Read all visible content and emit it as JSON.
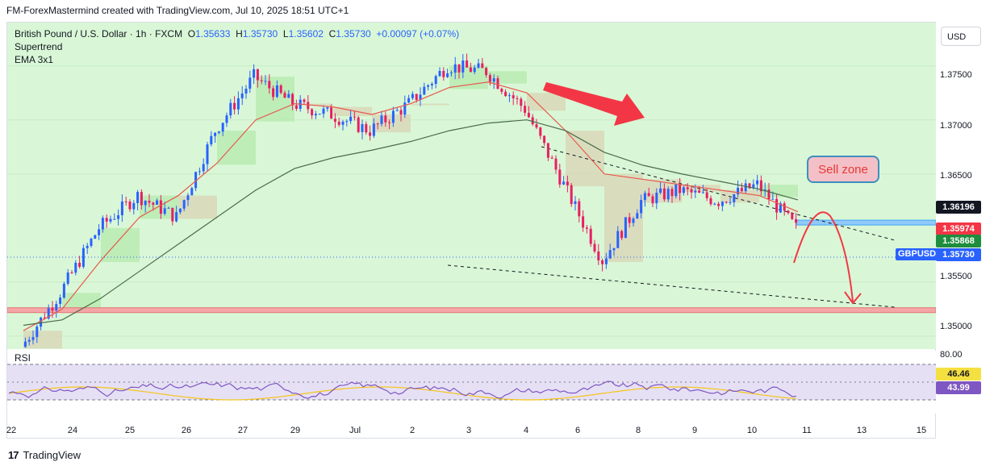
{
  "header": {
    "text": "FM-ForexMastermind created with TradingView.com, Jul 10, 2025 18:51 UTC+1"
  },
  "legend": {
    "symbol": "British Pound / U.S. Dollar · 1h · FXCM",
    "o_label": "O",
    "o": "1.35633",
    "h_label": "H",
    "h": "1.35730",
    "l_label": "L",
    "l": "1.35602",
    "c_label": "C",
    "c": "1.35730",
    "change": "+0.00097 (+0.07%)",
    "indicator1": "Supertrend",
    "indicator2": "EMA 3x1"
  },
  "currency_button": "USD",
  "price_axis_labels": [
    "1.37500",
    "1.37000",
    "1.36500",
    "1.35500",
    "1.35000"
  ],
  "price_tags": {
    "level_1": "1.36196",
    "level_2": "1.35974",
    "level_3": "1.35868",
    "current": "1.35730",
    "current_symbol": "GBPUSD"
  },
  "x_axis_labels": [
    "22",
    "24",
    "25",
    "26",
    "27",
    "29",
    "Jul",
    "2",
    "3",
    "4",
    "6",
    "8",
    "9",
    "10",
    "11",
    "13",
    "15"
  ],
  "annotation": {
    "sell_zone": "Sell zone"
  },
  "rsi": {
    "title": "RSI",
    "upper": "80.00",
    "value_ma": "46.46",
    "value_rsi": "43.99"
  },
  "footer": {
    "brand": "TradingView"
  },
  "colors": {
    "bg_green": "#d9f7d6",
    "bull": "#2962ff",
    "bear": "#e91e63",
    "ema_red": "#e8584f",
    "ema_green": "#4caf50",
    "ema_dark": "#4a6b4a",
    "support_band": "#f4a7a7",
    "resistance_band": "#90caf9",
    "arrow": "#f23645"
  },
  "chart_data": {
    "type": "line",
    "title": "British Pound / U.S. Dollar · 1h · FXCM",
    "ylim": [
      1.3488,
      1.379
    ],
    "yticks": [
      1.35,
      1.355,
      1.365,
      1.37,
      1.375
    ],
    "x": [
      0,
      1,
      2,
      3,
      4,
      5,
      6,
      7,
      8,
      9,
      10,
      11,
      12,
      13,
      14,
      15,
      16,
      17,
      18,
      19,
      20
    ],
    "series": [
      {
        "values": [
          1.349,
          1.354,
          1.36,
          1.363,
          1.361,
          1.369,
          1.374,
          1.3715,
          1.3705,
          1.369,
          1.3715,
          1.375,
          1.3745,
          1.371,
          1.364,
          1.357,
          1.3625,
          1.3635,
          1.3625,
          1.364,
          1.36
        ]
      },
      {
        "values": [
          1.3505,
          1.3525,
          1.357,
          1.361,
          1.363,
          1.366,
          1.37,
          1.3715,
          1.3712,
          1.3705,
          1.3715,
          1.373,
          1.3735,
          1.3725,
          1.369,
          1.365,
          1.3645,
          1.364,
          1.3635,
          1.363,
          1.3615
        ]
      },
      {
        "values": [
          1.351,
          1.3515,
          1.3535,
          1.356,
          1.3585,
          1.361,
          1.3635,
          1.3655,
          1.3665,
          1.3672,
          1.368,
          1.369,
          1.3697,
          1.37,
          1.369,
          1.367,
          1.3658,
          1.365,
          1.3643,
          1.3636,
          1.3626
        ]
      }
    ],
    "price_levels": {
      "support": 1.3524,
      "resistance": 1.3605
    },
    "rsi": {
      "overbought": 80,
      "ma": 46.46,
      "rsi": 43.99
    }
  }
}
